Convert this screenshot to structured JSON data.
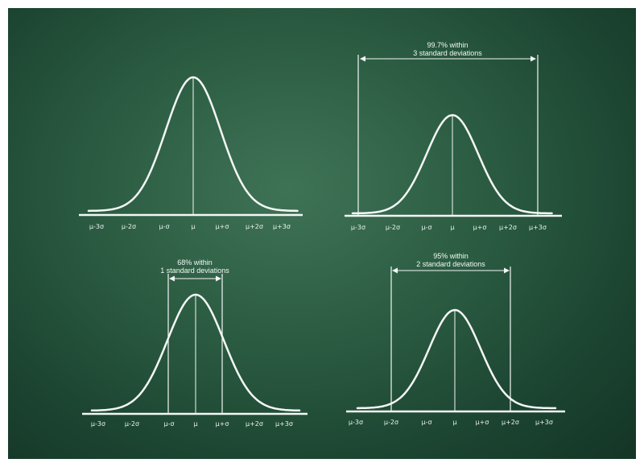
{
  "colors": {
    "board": "#2b5c42",
    "chalk": "#f4f7f5"
  },
  "ticks": [
    "μ-3σ",
    "μ-2σ",
    "μ-σ",
    "μ",
    "μ+σ",
    "μ+2σ",
    "μ+3σ"
  ],
  "panels": [
    {
      "id": "plain",
      "annotation": []
    },
    {
      "id": "three-sigma",
      "annotation": [
        "99.7% within",
        "3 standard deviations"
      ],
      "span_sigma": 3
    },
    {
      "id": "one-sigma",
      "annotation": [
        "68% within",
        "1 standard deviations"
      ],
      "span_sigma": 1
    },
    {
      "id": "two-sigma",
      "annotation": [
        "95% within",
        "2 standard deviations"
      ],
      "span_sigma": 2
    }
  ]
}
